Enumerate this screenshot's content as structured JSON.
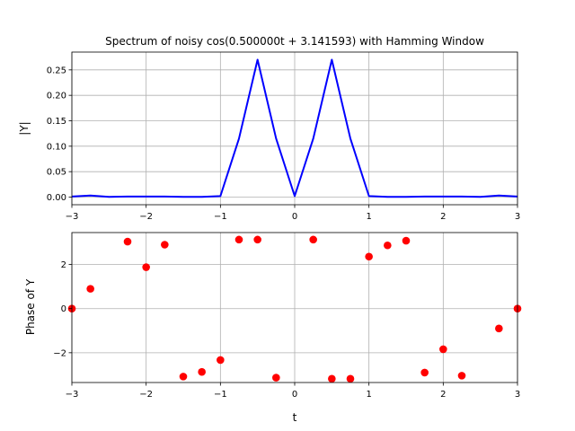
{
  "chart_data": [
    {
      "type": "line",
      "title": "Spectrum of noisy cos(0.500000t + 3.141593) with Hamming Window",
      "xlabel": "",
      "ylabel": "|Y|",
      "xlim": [
        -3,
        3
      ],
      "ylim": [
        -0.015,
        0.285
      ],
      "grid": true,
      "xticks": [
        -3,
        -2,
        -1,
        0,
        1,
        2,
        3
      ],
      "xtick_labels": [
        "−3",
        "−2",
        "−1",
        "0",
        "1",
        "2",
        "3"
      ],
      "yticks": [
        0.0,
        0.05,
        0.1,
        0.15,
        0.2,
        0.25
      ],
      "ytick_labels": [
        "0.00",
        "0.05",
        "0.10",
        "0.15",
        "0.20",
        "0.25"
      ],
      "color": "#0000ff",
      "x": [
        -3.0,
        -2.75,
        -2.5,
        -2.25,
        -2.0,
        -1.75,
        -1.5,
        -1.25,
        -1.0,
        -0.75,
        -0.5,
        -0.25,
        0.0,
        0.25,
        0.5,
        0.75,
        1.0,
        1.25,
        1.5,
        1.75,
        2.0,
        2.25,
        2.5,
        2.75,
        3.0
      ],
      "y": [
        0.001,
        0.003,
        0.0005,
        0.001,
        0.001,
        0.001,
        0.0005,
        0.0005,
        0.002,
        0.115,
        0.27,
        0.115,
        0.002,
        0.115,
        0.27,
        0.115,
        0.002,
        0.0005,
        0.0005,
        0.001,
        0.001,
        0.001,
        0.0005,
        0.003,
        0.001
      ]
    },
    {
      "type": "scatter",
      "title": "",
      "xlabel": "t",
      "ylabel": "Phase of Y",
      "xlim": [
        -3,
        3
      ],
      "ylim": [
        -3.35,
        3.45
      ],
      "grid": true,
      "xticks": [
        -3,
        -2,
        -1,
        0,
        1,
        2,
        3
      ],
      "xtick_labels": [
        "−3",
        "−2",
        "−1",
        "0",
        "1",
        "2",
        "3"
      ],
      "yticks": [
        -2,
        0,
        2
      ],
      "ytick_labels": [
        "−2",
        "0",
        "2"
      ],
      "color": "#ff0000",
      "x": [
        -3.0,
        -2.75,
        -2.25,
        -2.0,
        -1.75,
        -1.5,
        -1.25,
        -1.0,
        -0.75,
        -0.5,
        -0.25,
        0.25,
        0.5,
        0.75,
        1.0,
        1.25,
        1.5,
        1.75,
        2.0,
        2.25,
        2.75,
        3.0
      ],
      "y": [
        0.0,
        0.9,
        3.04,
        1.88,
        2.9,
        -3.08,
        -2.87,
        -2.33,
        3.13,
        3.13,
        -3.13,
        3.13,
        -3.18,
        -3.18,
        2.36,
        2.87,
        3.08,
        -2.9,
        -1.84,
        -3.04,
        -0.9,
        0.0
      ]
    }
  ]
}
